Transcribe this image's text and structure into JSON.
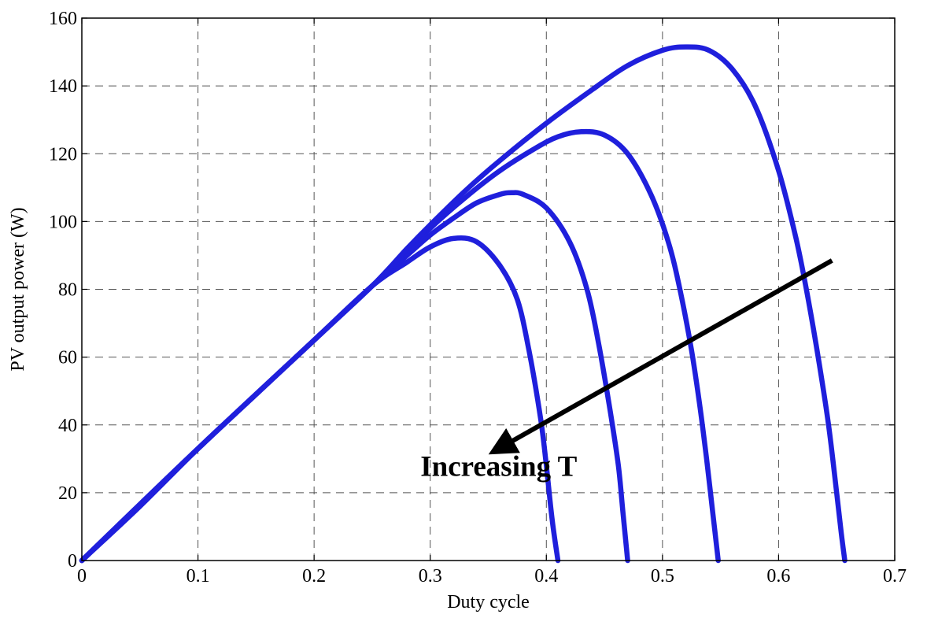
{
  "chart_data": {
    "type": "line",
    "title": "",
    "xlabel": "Duty cycle",
    "ylabel": "PV output power (W)",
    "xlim": [
      0,
      0.7
    ],
    "ylim": [
      0,
      160
    ],
    "xticks": [
      0,
      0.1,
      0.2,
      0.3,
      0.4,
      0.5,
      0.6,
      0.7
    ],
    "xtick_labels": [
      "0",
      "0.1",
      "0.2",
      "0.3",
      "0.4",
      "0.5",
      "0.6",
      "0.7"
    ],
    "yticks": [
      0,
      20,
      40,
      60,
      80,
      100,
      120,
      140,
      160
    ],
    "ytick_labels": [
      "0",
      "20",
      "40",
      "60",
      "80",
      "100",
      "120",
      "140",
      "160"
    ],
    "grid": true,
    "series_color": "#1f1fdc",
    "series": [
      {
        "x": [
          0,
          0.05,
          0.1,
          0.15,
          0.2,
          0.25,
          0.28,
          0.3,
          0.32,
          0.34,
          0.36,
          0.375,
          0.385,
          0.395,
          0.4,
          0.405,
          0.41
        ],
        "y": [
          0,
          16,
          33,
          49,
          65,
          81,
          88,
          92.5,
          95,
          94,
          87,
          77,
          62,
          42,
          28,
          12,
          0
        ]
      },
      {
        "x": [
          0,
          0.1,
          0.2,
          0.25,
          0.28,
          0.3,
          0.32,
          0.34,
          0.36,
          0.37,
          0.38,
          0.4,
          0.42,
          0.435,
          0.445,
          0.455,
          0.462,
          0.466,
          0.47
        ],
        "y": [
          0,
          33,
          65,
          81,
          90,
          96,
          101,
          105.5,
          108,
          108.5,
          108,
          104,
          94,
          80,
          64,
          44,
          28,
          14,
          0
        ]
      },
      {
        "x": [
          0,
          0.1,
          0.2,
          0.25,
          0.28,
          0.3,
          0.33,
          0.36,
          0.39,
          0.41,
          0.43,
          0.45,
          0.47,
          0.49,
          0.505,
          0.515,
          0.525,
          0.532,
          0.538,
          0.543,
          0.548
        ],
        "y": [
          0,
          33,
          65,
          81,
          91,
          98,
          107,
          115,
          121.5,
          125,
          126.5,
          125.5,
          120,
          108,
          94,
          80,
          62,
          46,
          30,
          15,
          0
        ]
      },
      {
        "x": [
          0,
          0.1,
          0.2,
          0.25,
          0.28,
          0.3,
          0.33,
          0.36,
          0.4,
          0.44,
          0.47,
          0.5,
          0.52,
          0.54,
          0.56,
          0.58,
          0.6,
          0.615,
          0.625,
          0.635,
          0.643,
          0.65,
          0.654,
          0.657
        ],
        "y": [
          0,
          33,
          65,
          81,
          92,
          99,
          109,
          118,
          129,
          139,
          146,
          150.5,
          151.5,
          150.5,
          145,
          134,
          115,
          95,
          78,
          58,
          40,
          20,
          8,
          0
        ]
      }
    ],
    "annotations": [
      {
        "text": "Increasing T",
        "x": 0.359,
        "y": 28,
        "arrow_from": [
          0.646,
          88.5
        ],
        "arrow_to": [
          0.359,
          33
        ]
      }
    ]
  }
}
